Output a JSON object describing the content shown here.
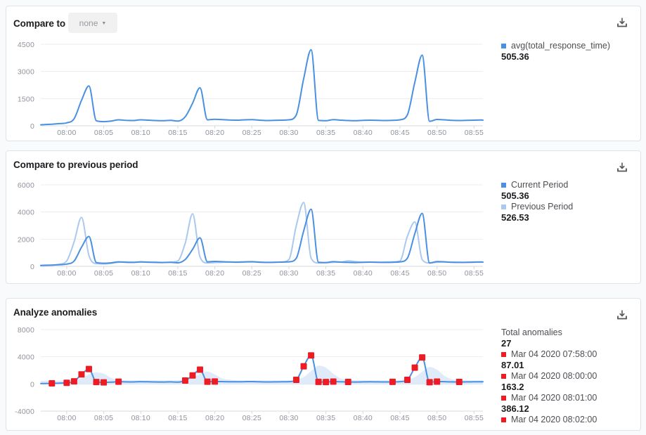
{
  "panels": [
    {
      "title": "Compare to",
      "dropdown": {
        "label": "none"
      },
      "legend": [
        {
          "label": "avg(total_response_time)",
          "value": "505.36",
          "color": "#4a90e2"
        }
      ]
    },
    {
      "title": "Compare to previous period",
      "legend": [
        {
          "label": "Current Period",
          "value": "505.36",
          "color": "#4a90e2"
        },
        {
          "label": "Previous Period",
          "value": "526.53",
          "color": "#aac9ef"
        }
      ]
    },
    {
      "title": "Analyze anomalies",
      "legend_header": {
        "label": "Total anomalies",
        "value": "27"
      },
      "anomaly_list": [
        {
          "timestamp": "Mar 04 2020 07:58:00",
          "value": "87.01"
        },
        {
          "timestamp": "Mar 04 2020 08:00:00",
          "value": "163.2"
        },
        {
          "timestamp": "Mar 04 2020 08:01:00",
          "value": "386.12"
        },
        {
          "timestamp": "Mar 04 2020 08:02:00",
          "value": ""
        }
      ]
    }
  ],
  "colors": {
    "current": "#4a90e2",
    "previous": "#aac9ef",
    "band": "#cfe0f6",
    "anomaly": "#ed1c24",
    "grid": "#ededf1",
    "axis": "#d7d9de",
    "tick_text": "#8f939c"
  },
  "chart_data": [
    {
      "type": "line",
      "title": "Compare to",
      "x_minutes_after_0800": [
        -3.5,
        -3,
        -2,
        -1,
        0,
        1,
        2,
        3,
        4,
        5,
        6,
        7,
        8,
        9,
        10,
        11,
        12,
        13,
        14,
        15,
        16,
        17,
        18,
        19,
        20,
        21,
        22,
        23,
        24,
        25,
        26,
        27,
        28,
        29,
        30,
        31,
        32,
        33,
        34,
        35,
        36,
        37,
        38,
        39,
        40,
        41,
        42,
        43,
        44,
        45,
        46,
        47,
        48,
        49,
        50,
        51,
        52,
        53,
        54,
        55,
        56,
        56.2
      ],
      "x_tick_labels": [
        "08:00",
        "08:05",
        "08:10",
        "08:15",
        "08:20",
        "08:25",
        "08:30",
        "08:35",
        "08:40",
        "08:45",
        "08:50",
        "08:55"
      ],
      "ylim": [
        0,
        4500
      ],
      "y_ticks": [
        4500,
        3000,
        1500,
        0
      ],
      "series": [
        {
          "name": "avg(total_response_time)",
          "avg": 505.36,
          "color": "#4a90e2",
          "values": [
            55,
            70,
            87,
            120,
            163,
            386,
            1400,
            2200,
            280,
            230,
            260,
            330,
            300,
            290,
            330,
            310,
            290,
            280,
            300,
            260,
            500,
            1250,
            2100,
            330,
            360,
            340,
            320,
            310,
            330,
            340,
            310,
            290,
            300,
            310,
            330,
            600,
            2600,
            4200,
            300,
            280,
            340,
            310,
            290,
            280,
            300,
            310,
            300,
            290,
            300,
            330,
            600,
            2400,
            3900,
            250,
            350,
            330,
            300,
            290,
            300,
            310,
            320,
            310
          ]
        }
      ]
    },
    {
      "type": "line",
      "title": "Compare to previous period",
      "x_minutes_after_0800": [
        -3.5,
        -3,
        -2,
        -1,
        0,
        1,
        2,
        3,
        4,
        5,
        6,
        7,
        8,
        9,
        10,
        11,
        12,
        13,
        14,
        15,
        16,
        17,
        18,
        19,
        20,
        21,
        22,
        23,
        24,
        25,
        26,
        27,
        28,
        29,
        30,
        31,
        32,
        33,
        34,
        35,
        36,
        37,
        38,
        39,
        40,
        41,
        42,
        43,
        44,
        45,
        46,
        47,
        48,
        49,
        50,
        51,
        52,
        53,
        54,
        55,
        56,
        56.2
      ],
      "x_tick_labels": [
        "08:00",
        "08:05",
        "08:10",
        "08:15",
        "08:20",
        "08:25",
        "08:30",
        "08:35",
        "08:40",
        "08:45",
        "08:50",
        "08:55"
      ],
      "ylim": [
        0,
        6000
      ],
      "y_ticks": [
        6000,
        4000,
        2000,
        0
      ],
      "series": [
        {
          "name": "Previous Period",
          "avg": 526.53,
          "color": "#aac9ef",
          "values": [
            80,
            90,
            100,
            150,
            400,
            1800,
            3600,
            800,
            200,
            180,
            220,
            300,
            320,
            300,
            310,
            300,
            310,
            290,
            300,
            400,
            1700,
            3870,
            700,
            250,
            280,
            300,
            310,
            300,
            310,
            320,
            300,
            290,
            300,
            320,
            500,
            3000,
            4700,
            600,
            250,
            270,
            300,
            310,
            400,
            350,
            300,
            310,
            300,
            310,
            330,
            400,
            2200,
            3270,
            500,
            250,
            300,
            320,
            310,
            300,
            290,
            300,
            310,
            315
          ]
        },
        {
          "name": "Current Period",
          "avg": 505.36,
          "color": "#4a90e2",
          "values": [
            55,
            70,
            87,
            120,
            163,
            386,
            1400,
            2200,
            280,
            230,
            260,
            330,
            300,
            290,
            330,
            310,
            290,
            280,
            300,
            260,
            500,
            1250,
            2100,
            330,
            360,
            340,
            320,
            310,
            330,
            340,
            310,
            290,
            300,
            310,
            330,
            600,
            2600,
            4200,
            300,
            280,
            340,
            310,
            290,
            280,
            300,
            310,
            300,
            290,
            300,
            330,
            600,
            2400,
            3900,
            250,
            350,
            330,
            300,
            290,
            300,
            310,
            320,
            310
          ]
        }
      ]
    },
    {
      "type": "line+band+anomaly-markers",
      "title": "Analyze anomalies",
      "x_minutes_after_0800": [
        -3.5,
        -3,
        -2,
        -1,
        0,
        1,
        2,
        3,
        4,
        5,
        6,
        7,
        8,
        9,
        10,
        11,
        12,
        13,
        14,
        15,
        16,
        17,
        18,
        19,
        20,
        21,
        22,
        23,
        24,
        25,
        26,
        27,
        28,
        29,
        30,
        31,
        32,
        33,
        34,
        35,
        36,
        37,
        38,
        39,
        40,
        41,
        42,
        43,
        44,
        45,
        46,
        47,
        48,
        49,
        50,
        51,
        52,
        53,
        54,
        55,
        56,
        56.2
      ],
      "x_tick_labels": [
        "08:00",
        "08:05",
        "08:10",
        "08:15",
        "08:20",
        "08:25",
        "08:30",
        "08:35",
        "08:40",
        "08:45",
        "08:50",
        "08:55"
      ],
      "ylim": [
        -4000,
        8000
      ],
      "y_ticks": [
        8000,
        4000,
        0,
        -4000
      ],
      "series": [
        {
          "name": "avg(total_response_time)",
          "color": "#4a90e2",
          "values": [
            55,
            70,
            87,
            120,
            163,
            386,
            1400,
            2200,
            280,
            230,
            260,
            330,
            300,
            290,
            330,
            310,
            290,
            280,
            300,
            260,
            500,
            1250,
            2100,
            330,
            360,
            340,
            320,
            310,
            330,
            340,
            310,
            290,
            300,
            310,
            330,
            600,
            2600,
            4200,
            300,
            280,
            340,
            310,
            290,
            280,
            300,
            310,
            300,
            290,
            300,
            330,
            600,
            2400,
            3900,
            250,
            350,
            330,
            300,
            290,
            300,
            310,
            320,
            310
          ]
        }
      ],
      "band": {
        "color": "#cfe0f6",
        "upper": [
          450,
          460,
          470,
          480,
          520,
          600,
          800,
          1400,
          1700,
          1500,
          900,
          620,
          540,
          520,
          530,
          520,
          510,
          510,
          520,
          540,
          620,
          900,
          1500,
          1800,
          1400,
          800,
          620,
          540,
          530,
          530,
          520,
          510,
          520,
          530,
          550,
          700,
          1000,
          1900,
          2700,
          2400,
          1500,
          800,
          600,
          540,
          530,
          520,
          520,
          520,
          530,
          550,
          700,
          1000,
          1800,
          2500,
          2100,
          1200,
          700,
          560,
          530,
          520,
          520,
          520
        ],
        "lower": [
          -80,
          -80,
          -80,
          -80,
          -80,
          -80,
          -80,
          -80,
          -150,
          -150,
          -80,
          -80,
          -80,
          -80,
          -80,
          -80,
          -80,
          -80,
          -80,
          -80,
          -80,
          -80,
          -80,
          -150,
          -150,
          -80,
          -80,
          -80,
          -80,
          -80,
          -80,
          -80,
          -80,
          -80,
          -80,
          -80,
          -80,
          -80,
          -200,
          -200,
          -80,
          -80,
          -80,
          -80,
          -80,
          -80,
          -80,
          -80,
          -80,
          -80,
          -80,
          -80,
          -80,
          -200,
          -200,
          -80,
          -80,
          -80,
          -80,
          -80,
          -80,
          -80
        ]
      },
      "anomalies": {
        "total": 27,
        "color": "#ed1c24",
        "x": [
          -2,
          0,
          1,
          2,
          3,
          4,
          5,
          7,
          16,
          17,
          18,
          19,
          20,
          31,
          32,
          33,
          34,
          35,
          36,
          38,
          44,
          46,
          47,
          48,
          49,
          50,
          53
        ],
        "values": [
          87,
          163,
          386,
          1400,
          2200,
          280,
          230,
          330,
          500,
          1250,
          2100,
          330,
          360,
          600,
          2600,
          4200,
          300,
          280,
          340,
          290,
          300,
          600,
          2400,
          3900,
          250,
          350,
          290
        ]
      }
    }
  ]
}
